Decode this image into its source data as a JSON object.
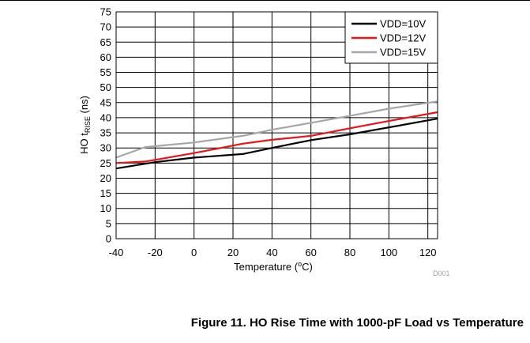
{
  "figure": {
    "caption": "Figure 11. HO Rise Time with 1000-pF Load vs Temperature"
  },
  "chart_data": {
    "type": "line",
    "ylabel_prefix": "HO t",
    "ylabel_sub": "RISE",
    "ylabel_suffix": " (ns)",
    "xlabel_prefix": "Temperature (",
    "xlabel_sup": "o",
    "xlabel_suffix": "C)",
    "xlim": [
      -40,
      125
    ],
    "ylim": [
      0,
      75
    ],
    "xticks": [
      -40,
      -20,
      0,
      20,
      40,
      60,
      80,
      100,
      120
    ],
    "yticks": [
      0,
      5,
      10,
      15,
      20,
      25,
      30,
      35,
      40,
      45,
      50,
      55,
      60,
      65,
      70,
      75
    ],
    "grid": true,
    "legend_position": "top-right",
    "watermark": "D001",
    "series": [
      {
        "name": "VDD=10V",
        "color": "#000000",
        "x": [
          -40,
          -20,
          0,
          25,
          40,
          60,
          80,
          100,
          125
        ],
        "y": [
          23.2,
          25.3,
          26.8,
          28.0,
          30.0,
          32.6,
          34.5,
          36.8,
          39.7
        ]
      },
      {
        "name": "VDD=12V",
        "color": "#e8141b",
        "x": [
          -40,
          -25,
          0,
          25,
          40,
          60,
          80,
          100,
          125
        ],
        "y": [
          25.0,
          25.5,
          28.3,
          31.4,
          32.7,
          34.0,
          36.5,
          38.9,
          41.8
        ]
      },
      {
        "name": "VDD=15V",
        "color": "#a6a6a6",
        "x": [
          -40,
          -25,
          0,
          25,
          40,
          60,
          80,
          100,
          125
        ],
        "y": [
          26.8,
          30.3,
          31.8,
          34.0,
          36.0,
          38.3,
          40.6,
          43.0,
          45.4
        ]
      }
    ]
  }
}
